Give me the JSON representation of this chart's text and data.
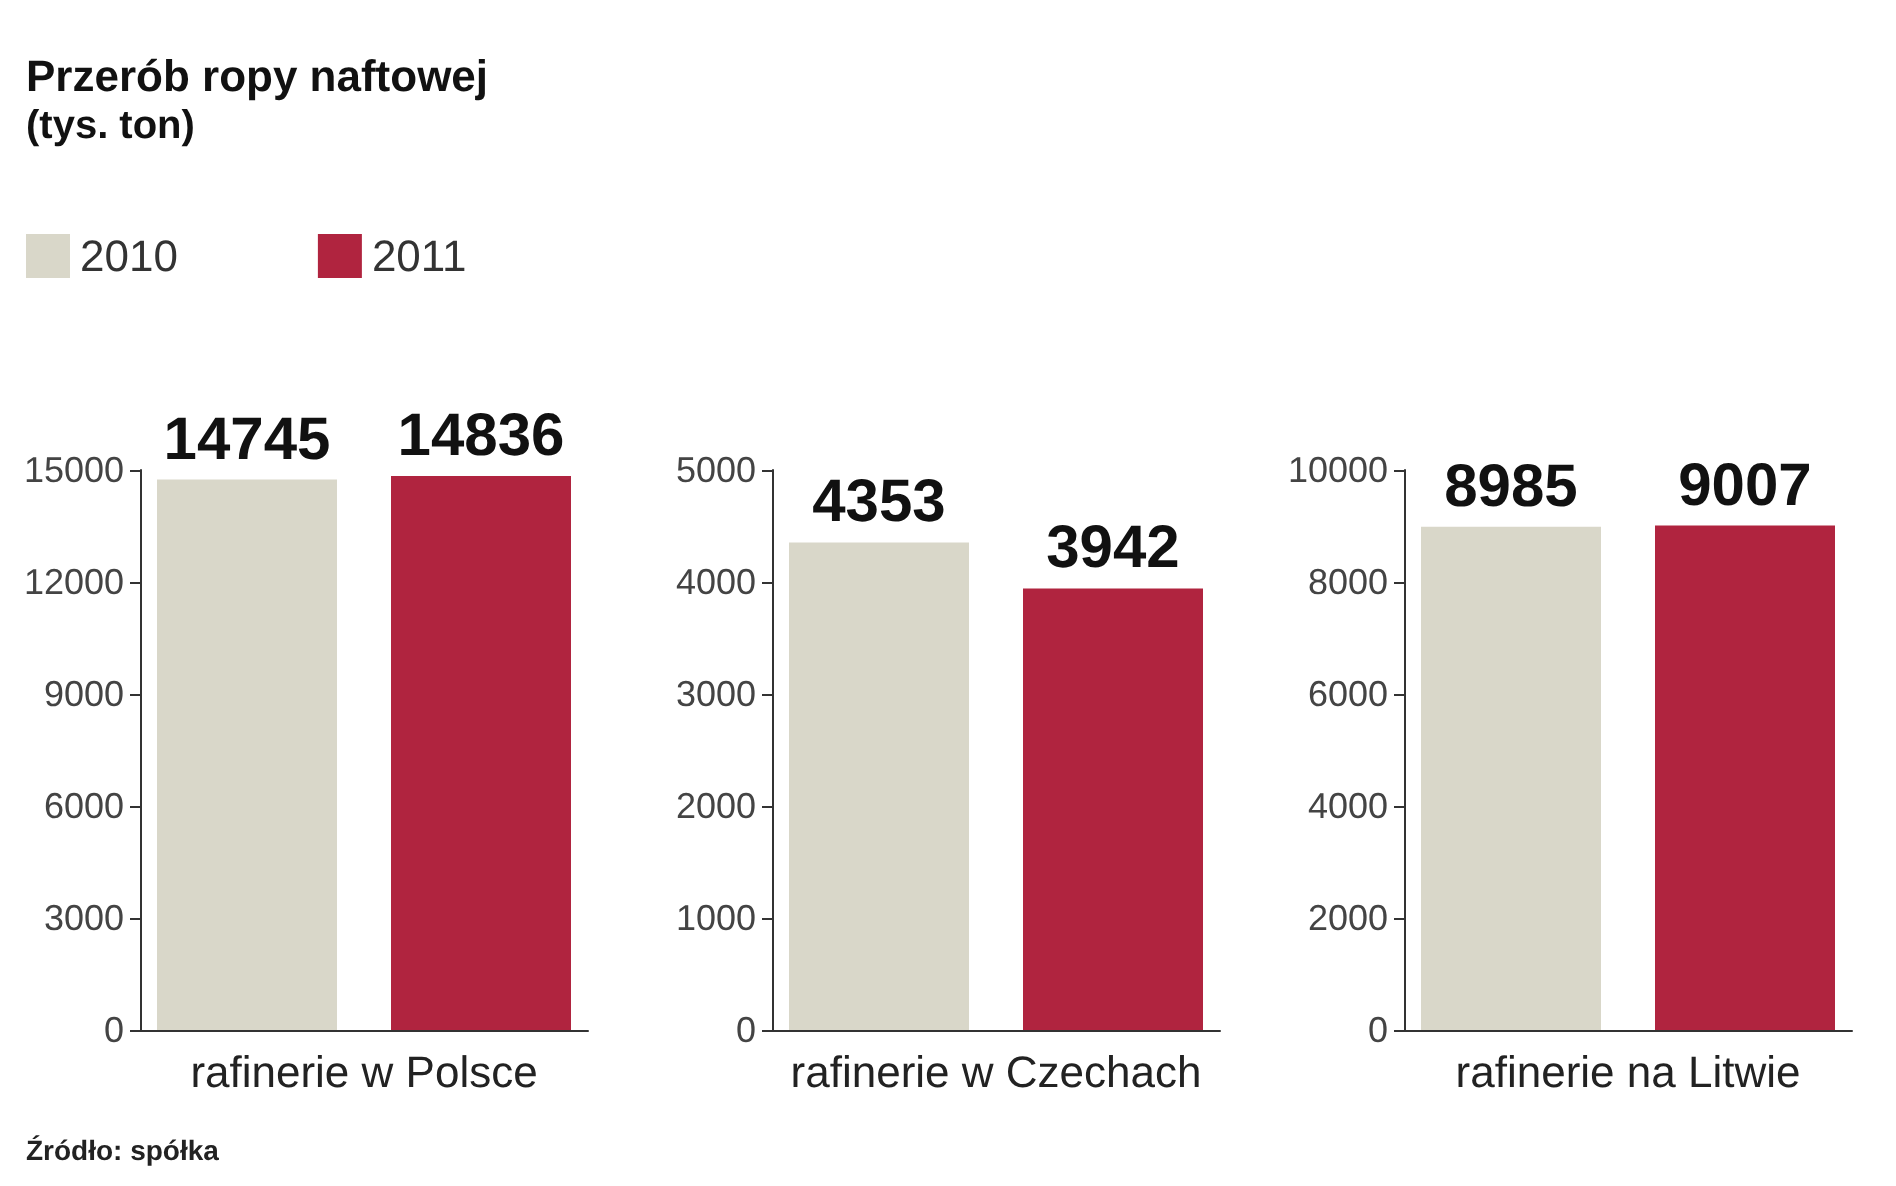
{
  "chart_data": [
    {
      "type": "bar",
      "title": "Przerób ropy naftowej",
      "subtitle": "(tys. ton)",
      "categories": [
        "rafinerie w Polsce"
      ],
      "series": [
        {
          "name": "2010",
          "color": "#d9d7c9",
          "values": [
            14745
          ]
        },
        {
          "name": "2011",
          "color": "#b0243f",
          "values": [
            14836
          ]
        }
      ],
      "ylim": [
        0,
        15000
      ],
      "yticks": [
        0,
        3000,
        6000,
        9000,
        12000,
        15000
      ],
      "data_labels": true,
      "legend": "top left",
      "grid": false,
      "annotations": [
        "Źródło: spółka"
      ]
    },
    {
      "type": "bar",
      "categories": [
        "rafinerie w Czechach"
      ],
      "series": [
        {
          "color": "#d9d7c9",
          "values": [
            4353
          ]
        },
        {
          "color": "#b0243f",
          "values": [
            3942
          ]
        }
      ],
      "ylim": [
        0,
        5000
      ],
      "yticks": [
        0,
        1000,
        2000,
        3000,
        4000,
        5000
      ],
      "data_labels": true,
      "grid": false
    },
    {
      "type": "bar",
      "categories": [
        "rafinerie na Litwie"
      ],
      "series": [
        {
          "color": "#d9d7c9",
          "values": [
            8985
          ]
        },
        {
          "color": "#b0243f",
          "values": [
            9007
          ]
        }
      ],
      "ylim": [
        0,
        10000
      ],
      "yticks": [
        0,
        2000,
        4000,
        6000,
        8000,
        10000
      ],
      "data_labels": true,
      "grid": false
    }
  ]
}
